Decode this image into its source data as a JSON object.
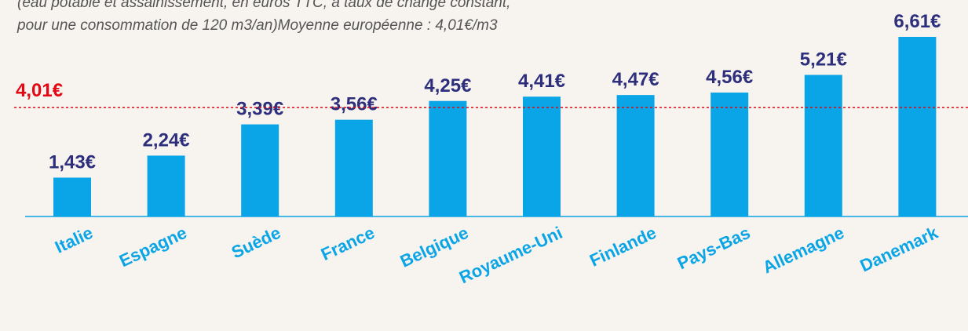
{
  "chart_data": {
    "type": "bar",
    "subtitle": [
      "(eau potable et assainissement, en euros TTC, à taux de change constant,",
      "pour une consommation de 120 m3/an)Moyenne européenne : 4,01€/m3"
    ],
    "categories": [
      "Italie",
      "Espagne",
      "Suède",
      "France",
      "Belgique",
      "Royaume-Uni",
      "Finlande",
      "Pays-Bas",
      "Allemagne",
      "Danemark"
    ],
    "values": [
      1.43,
      2.24,
      3.39,
      3.56,
      4.25,
      4.41,
      4.47,
      4.56,
      5.21,
      6.61
    ],
    "value_labels": [
      "1,43€",
      "2,24€",
      "3,39€",
      "3,56€",
      "4,25€",
      "4,41€",
      "4,47€",
      "4,56€",
      "5,21€",
      "6,61€"
    ],
    "color": "#0aa5e6",
    "reference": {
      "value": 4.01,
      "label": "4,01€",
      "color": "#e30613"
    }
  }
}
